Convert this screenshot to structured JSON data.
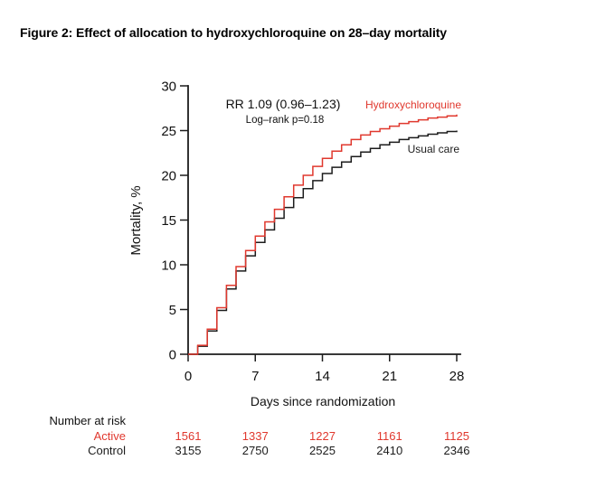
{
  "title": "Figure 2: Effect of allocation to hydroxychloroquine on 28–day mortality",
  "annotation": {
    "rr": "RR 1.09 (0.96–1.23)",
    "logrank": "Log–rank p=0.18"
  },
  "colors": {
    "active": "#e0382e",
    "control": "#1c1c1c",
    "axis": "#1c1c1c"
  },
  "chart_data": {
    "type": "line",
    "subtype": "kaplan-meier-step",
    "title": "",
    "xlabel": "Days since randomization",
    "ylabel": "Mortality, %",
    "xlim": [
      0,
      28
    ],
    "ylim": [
      0,
      30
    ],
    "xticks": [
      0,
      7,
      14,
      21,
      28
    ],
    "yticks": [
      0,
      5,
      10,
      15,
      20,
      25,
      30
    ],
    "grid": false,
    "legend_position": "labels-on-curves",
    "x": [
      0,
      1,
      2,
      3,
      4,
      5,
      6,
      7,
      8,
      9,
      10,
      11,
      12,
      13,
      14,
      15,
      16,
      17,
      18,
      19,
      20,
      21,
      22,
      23,
      24,
      25,
      26,
      27,
      28
    ],
    "series": [
      {
        "name": "Hydroxychloroquine",
        "color": "#e0382e",
        "values": [
          0,
          1.0,
          2.8,
          5.2,
          7.7,
          9.8,
          11.6,
          13.2,
          14.8,
          16.2,
          17.6,
          18.9,
          20.0,
          21.0,
          21.9,
          22.7,
          23.4,
          24.0,
          24.5,
          24.9,
          25.2,
          25.5,
          25.8,
          26.0,
          26.2,
          26.4,
          26.5,
          26.65,
          26.8
        ]
      },
      {
        "name": "Usual care",
        "color": "#1c1c1c",
        "values": [
          0,
          0.9,
          2.6,
          4.9,
          7.3,
          9.3,
          11.0,
          12.5,
          13.9,
          15.2,
          16.4,
          17.5,
          18.5,
          19.4,
          20.2,
          20.9,
          21.5,
          22.1,
          22.6,
          23.0,
          23.4,
          23.7,
          24.0,
          24.2,
          24.4,
          24.6,
          24.75,
          24.9,
          25.0
        ]
      }
    ]
  },
  "risk_table": {
    "header": "Number at risk",
    "columns": [
      0,
      7,
      14,
      21,
      28
    ],
    "rows": [
      {
        "label": "Active",
        "color": "#e0382e",
        "values": [
          "1561",
          "1337",
          "1227",
          "1161",
          "1125"
        ]
      },
      {
        "label": "Control",
        "color": "#1c1c1c",
        "values": [
          "3155",
          "2750",
          "2525",
          "2410",
          "2346"
        ]
      }
    ]
  }
}
